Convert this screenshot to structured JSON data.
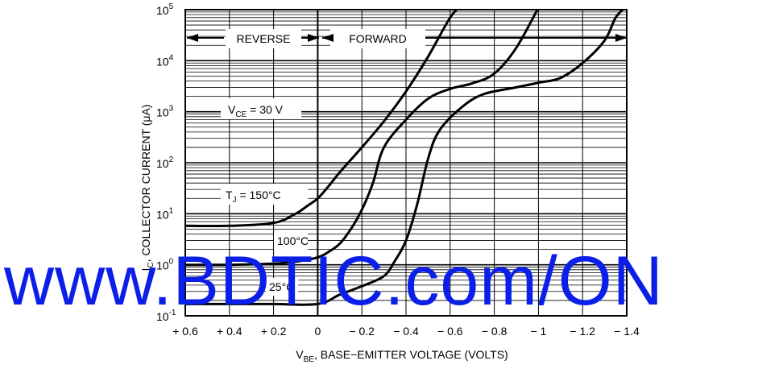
{
  "chart_data": {
    "type": "line",
    "ylabel_main": "I",
    "ylabel_sub": "C",
    "ylabel_rest": ", COLLECTOR CURRENT (μA)",
    "xlabel_main": "V",
    "xlabel_sub": "BE",
    "xlabel_rest": ", BASE−EMITTER VOLTAGE (VOLTS)",
    "xlim": [
      0.6,
      -1.4
    ],
    "ylim_log10": [
      -1,
      5
    ],
    "y_scale": "log",
    "grid": true,
    "x_ticks": [
      {
        "v": 0.6,
        "label": "+ 0.6"
      },
      {
        "v": 0.4,
        "label": "+ 0.4"
      },
      {
        "v": 0.2,
        "label": "+ 0.2"
      },
      {
        "v": 0,
        "label": "0"
      },
      {
        "v": -0.2,
        "label": "− 0.2"
      },
      {
        "v": -0.4,
        "label": "− 0.4"
      },
      {
        "v": -0.6,
        "label": "− 0.6"
      },
      {
        "v": -0.8,
        "label": "− 0.8"
      },
      {
        "v": -1.0,
        "label": "− 1"
      },
      {
        "v": -1.2,
        "label": "− 1.2"
      },
      {
        "v": -1.4,
        "label": "− 1.4"
      }
    ],
    "y_ticks": [
      {
        "exp": -1,
        "base": "10",
        "sup": "-1"
      },
      {
        "exp": 0,
        "base": "10",
        "sup": "0"
      },
      {
        "exp": 1,
        "base": "10",
        "sup": "1"
      },
      {
        "exp": 2,
        "base": "10",
        "sup": "2"
      },
      {
        "exp": 3,
        "base": "10",
        "sup": "3"
      },
      {
        "exp": 4,
        "base": "10",
        "sup": "4"
      },
      {
        "exp": 5,
        "base": "10",
        "sup": "5"
      }
    ],
    "series": [
      {
        "name": "150°C",
        "points": [
          [
            0.6,
            5.8
          ],
          [
            0.4,
            5.8
          ],
          [
            0.2,
            6.6
          ],
          [
            0.1,
            10
          ],
          [
            0.05,
            14
          ],
          [
            0,
            20
          ],
          [
            -0.05,
            35
          ],
          [
            -0.1,
            65
          ],
          [
            -0.2,
            200
          ],
          [
            -0.3,
            650
          ],
          [
            -0.4,
            2500
          ],
          [
            -0.5,
            12000
          ],
          [
            -0.6,
            70000
          ],
          [
            -0.65,
            160000
          ]
        ]
      },
      {
        "name": "100°C",
        "points": [
          [
            0.6,
            1.0
          ],
          [
            0.4,
            1.0
          ],
          [
            0.2,
            1.05
          ],
          [
            0.1,
            1.15
          ],
          [
            0,
            1.4
          ],
          [
            -0.05,
            1.8
          ],
          [
            -0.1,
            2.6
          ],
          [
            -0.15,
            5
          ],
          [
            -0.2,
            12
          ],
          [
            -0.25,
            40
          ],
          [
            -0.3,
            200
          ],
          [
            -0.4,
            700
          ],
          [
            -0.5,
            1800
          ],
          [
            -0.6,
            2800
          ],
          [
            -0.7,
            3600
          ],
          [
            -0.8,
            5600
          ],
          [
            -0.9,
            18000
          ],
          [
            -1.0,
            110000
          ]
        ]
      },
      {
        "name": "25°C",
        "points": [
          [
            0.6,
            0.17
          ],
          [
            0.4,
            0.17
          ],
          [
            0.2,
            0.17
          ],
          [
            0,
            0.17
          ],
          [
            -0.1,
            0.26
          ],
          [
            -0.2,
            0.38
          ],
          [
            -0.3,
            0.6
          ],
          [
            -0.35,
            1.2
          ],
          [
            -0.4,
            3
          ],
          [
            -0.45,
            15
          ],
          [
            -0.5,
            120
          ],
          [
            -0.55,
            420
          ],
          [
            -0.65,
            1200
          ],
          [
            -0.75,
            2200
          ],
          [
            -0.9,
            3000
          ],
          [
            -1.0,
            3700
          ],
          [
            -1.1,
            4600
          ],
          [
            -1.2,
            9000
          ],
          [
            -1.3,
            25000
          ],
          [
            -1.35,
            70000
          ],
          [
            -1.4,
            150000
          ]
        ]
      }
    ],
    "annotations": {
      "reverse": "REVERSE",
      "forward": "FORWARD",
      "vce_main": "V",
      "vce_sub": "CE",
      "vce_rest": " = 30 V",
      "tj_main": "T",
      "tj_sub": "J",
      "tj_rest": " = 150°C",
      "t100": "100°C",
      "t25": "25°C"
    }
  },
  "watermark": "www.BDTIC.com/ON"
}
